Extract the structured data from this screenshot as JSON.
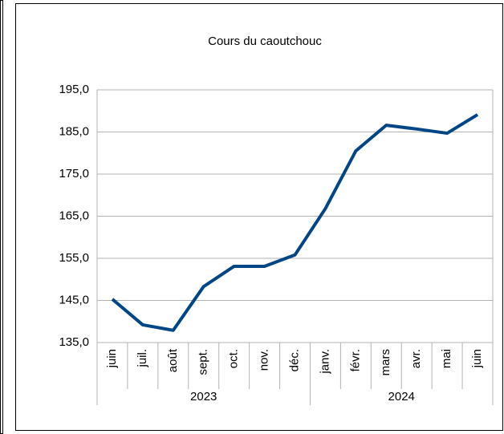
{
  "chart_data": {
    "type": "line",
    "title": "Cours du caoutchouc",
    "categories": [
      "juin",
      "juil.",
      "août",
      "sept.",
      "oct.",
      "nov.",
      "déc.",
      "janv.",
      "févr.",
      "mars",
      "avr.",
      "mai",
      "juin"
    ],
    "category_groups": [
      {
        "label": "2023",
        "size": 7
      },
      {
        "label": "2024",
        "size": 6
      }
    ],
    "series": [
      {
        "color": "#004586",
        "values": [
          145.3,
          139.2,
          137.9,
          148.3,
          153.1,
          153.1,
          155.8,
          166.8,
          180.5,
          186.6,
          185.7,
          184.7,
          189.1
        ]
      }
    ],
    "ylim": [
      135,
      195
    ],
    "yticks": [
      {
        "value": 135,
        "label": "135,0"
      },
      {
        "value": 145,
        "label": "145,0"
      },
      {
        "value": 155,
        "label": "155,0"
      },
      {
        "value": 165,
        "label": "165,0"
      },
      {
        "value": 175,
        "label": "175,0"
      },
      {
        "value": 185,
        "label": "185,0"
      },
      {
        "value": 195,
        "label": "195,0"
      }
    ],
    "grid": true
  }
}
